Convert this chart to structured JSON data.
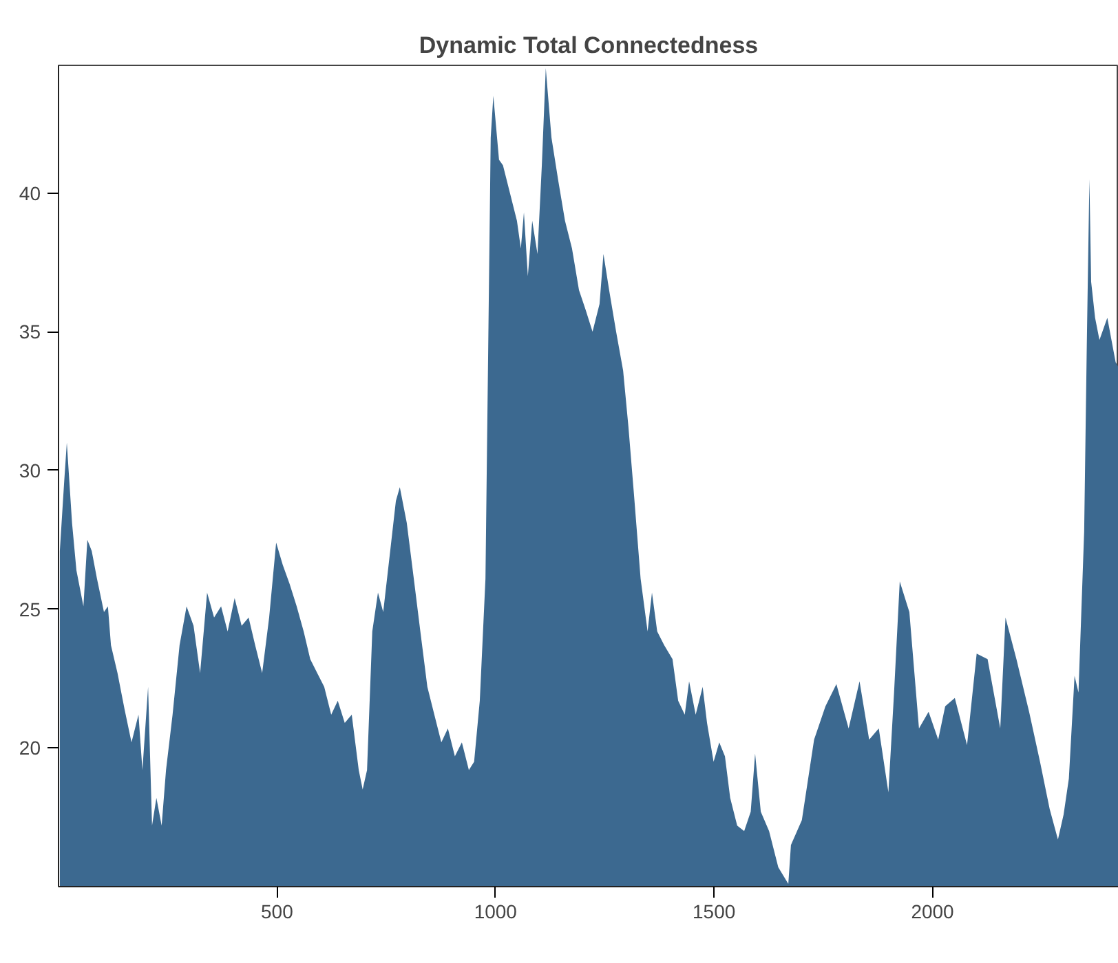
{
  "chart_data": {
    "type": "area",
    "title": "Dynamic Total Connectedness",
    "color": "#3c6990",
    "x": [
      3,
      13,
      19,
      31,
      41,
      57,
      66,
      76,
      88,
      104,
      113,
      120,
      135,
      151,
      167,
      183,
      192,
      205,
      214,
      224,
      236,
      246,
      261,
      277,
      293,
      309,
      324,
      340,
      356,
      372,
      387,
      403,
      419,
      435,
      450,
      466,
      482,
      498,
      513,
      529,
      545,
      561,
      576,
      592,
      608,
      624,
      639,
      655,
      671,
      687,
      696,
      706,
      718,
      731,
      743,
      759,
      772,
      781,
      797,
      813,
      828,
      844,
      860,
      876,
      891,
      907,
      923,
      939,
      951,
      964,
      977,
      989,
      995,
      1008,
      1017,
      1033,
      1049,
      1058,
      1065,
      1074,
      1084,
      1096,
      1106,
      1115,
      1128,
      1143,
      1159,
      1175,
      1191,
      1206,
      1222,
      1238,
      1247,
      1260,
      1276,
      1292,
      1304,
      1317,
      1332,
      1348,
      1358,
      1370,
      1386,
      1405,
      1418,
      1433,
      1443,
      1458,
      1474,
      1484,
      1499,
      1512,
      1525,
      1537,
      1553,
      1569,
      1584,
      1594,
      1607,
      1626,
      1647,
      1670,
      1676,
      1701,
      1729,
      1755,
      1780,
      1808,
      1833,
      1855,
      1877,
      1899,
      1912,
      1925,
      1947,
      1969,
      1991,
      2013,
      2029,
      2051,
      2079,
      2101,
      2126,
      2155,
      2167,
      2192,
      2221,
      2246,
      2268,
      2287,
      2300,
      2312,
      2325,
      2334,
      2347,
      2353,
      2359,
      2363,
      2372,
      2382,
      2400,
      2419,
      2426
    ],
    "values": [
      27.1,
      29.6,
      31.0,
      28.1,
      26.4,
      25.1,
      27.5,
      27.1,
      26.1,
      24.9,
      25.1,
      23.7,
      22.7,
      21.4,
      20.2,
      21.2,
      19.2,
      22.2,
      17.2,
      18.2,
      17.2,
      19.2,
      21.2,
      23.7,
      25.1,
      24.4,
      22.7,
      25.6,
      24.7,
      25.1,
      24.2,
      25.4,
      24.4,
      24.7,
      23.7,
      22.7,
      24.7,
      27.4,
      26.6,
      25.9,
      25.1,
      24.2,
      23.2,
      22.7,
      22.2,
      21.2,
      21.7,
      20.9,
      21.2,
      19.2,
      18.5,
      19.2,
      24.2,
      25.6,
      24.9,
      27.1,
      28.9,
      29.4,
      28.1,
      26.1,
      24.2,
      22.2,
      21.2,
      20.2,
      20.7,
      19.7,
      20.2,
      19.2,
      19.5,
      21.7,
      26.1,
      42.0,
      43.5,
      41.2,
      41.0,
      40.0,
      39.0,
      38.0,
      39.3,
      37.0,
      39.0,
      37.8,
      41.0,
      44.5,
      42.0,
      40.5,
      39.0,
      38.0,
      36.5,
      35.8,
      35.0,
      36.0,
      37.8,
      36.5,
      35.0,
      33.6,
      31.6,
      29.1,
      26.1,
      24.2,
      25.6,
      24.2,
      23.7,
      23.2,
      21.7,
      21.2,
      22.4,
      21.2,
      22.2,
      20.9,
      19.5,
      20.2,
      19.7,
      18.2,
      17.2,
      17.0,
      17.7,
      19.8,
      17.7,
      17.0,
      15.7,
      15.1,
      16.5,
      17.4,
      20.3,
      21.5,
      22.3,
      20.7,
      22.4,
      20.3,
      20.7,
      18.4,
      22.0,
      26.0,
      24.9,
      20.7,
      21.3,
      20.3,
      21.5,
      21.8,
      20.1,
      23.4,
      23.2,
      20.7,
      24.7,
      23.2,
      21.3,
      19.5,
      17.8,
      16.7,
      17.6,
      18.9,
      22.6,
      22.0,
      27.8,
      34.5,
      40.5,
      36.8,
      35.5,
      34.7,
      35.5,
      33.9,
      33.7
    ],
    "xlim": [
      0,
      2426
    ],
    "ylim": [
      15.0,
      44.6
    ],
    "xticks": [
      500,
      1000,
      1500,
      2000
    ],
    "yticks": [
      20,
      25,
      30,
      35,
      40
    ]
  }
}
